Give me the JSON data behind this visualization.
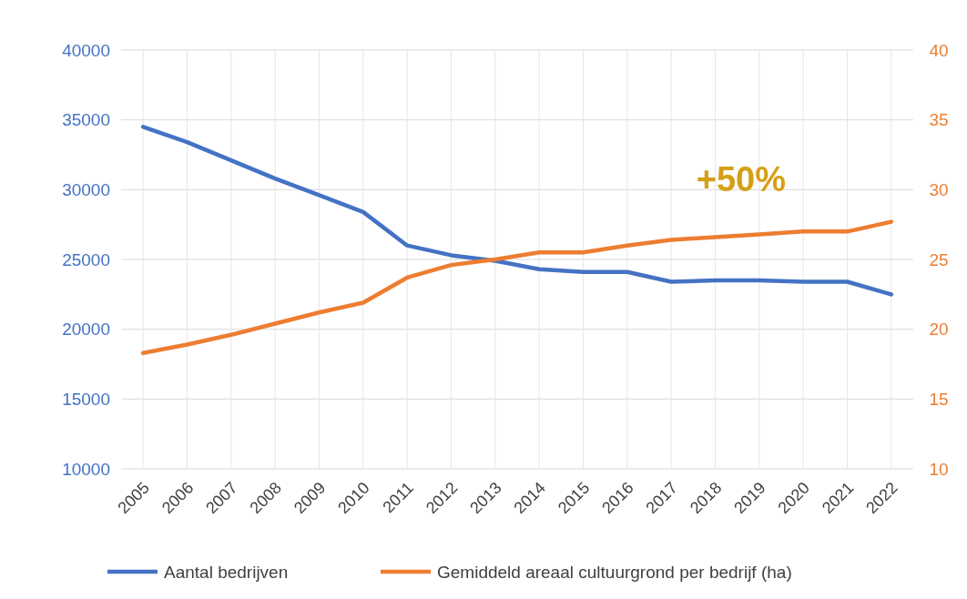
{
  "chart_data": {
    "type": "line",
    "categories": [
      "2005",
      "2006",
      "2007",
      "2008",
      "2009",
      "2010",
      "2011",
      "2012",
      "2013",
      "2014",
      "2015",
      "2016",
      "2017",
      "2018",
      "2019",
      "2020",
      "2021",
      "2022"
    ],
    "series": [
      {
        "name": "Aantal bedrijven",
        "color": "#4472c4",
        "values": [
          34500,
          33400,
          32100,
          30800,
          29600,
          28400,
          26000,
          25300,
          24900,
          24300,
          24100,
          24100,
          23400,
          23500,
          23500,
          23400,
          23400,
          22500
        ]
      },
      {
        "name": "Gemiddeld areaal cultuurgrond per bedrijf (ha)",
        "color": "#ed7d31",
        "axis": "y2",
        "values": [
          18.3,
          18.9,
          19.6,
          20.4,
          21.2,
          21.9,
          23.7,
          24.6,
          25.0,
          25.5,
          25.5,
          26.0,
          26.4,
          26.6,
          26.8,
          27.0,
          27.0,
          27.7
        ]
      }
    ],
    "ylim": [
      10000,
      40000
    ],
    "yticks": [
      10000,
      15000,
      20000,
      25000,
      30000,
      35000,
      40000
    ],
    "y2lim": [
      10,
      40
    ],
    "y2ticks": [
      10,
      15,
      20,
      25,
      30,
      35,
      40
    ],
    "annotations": [
      "+50%"
    ],
    "grid": true,
    "legend": "bottom",
    "marker": "none",
    "line_style": "solid"
  }
}
